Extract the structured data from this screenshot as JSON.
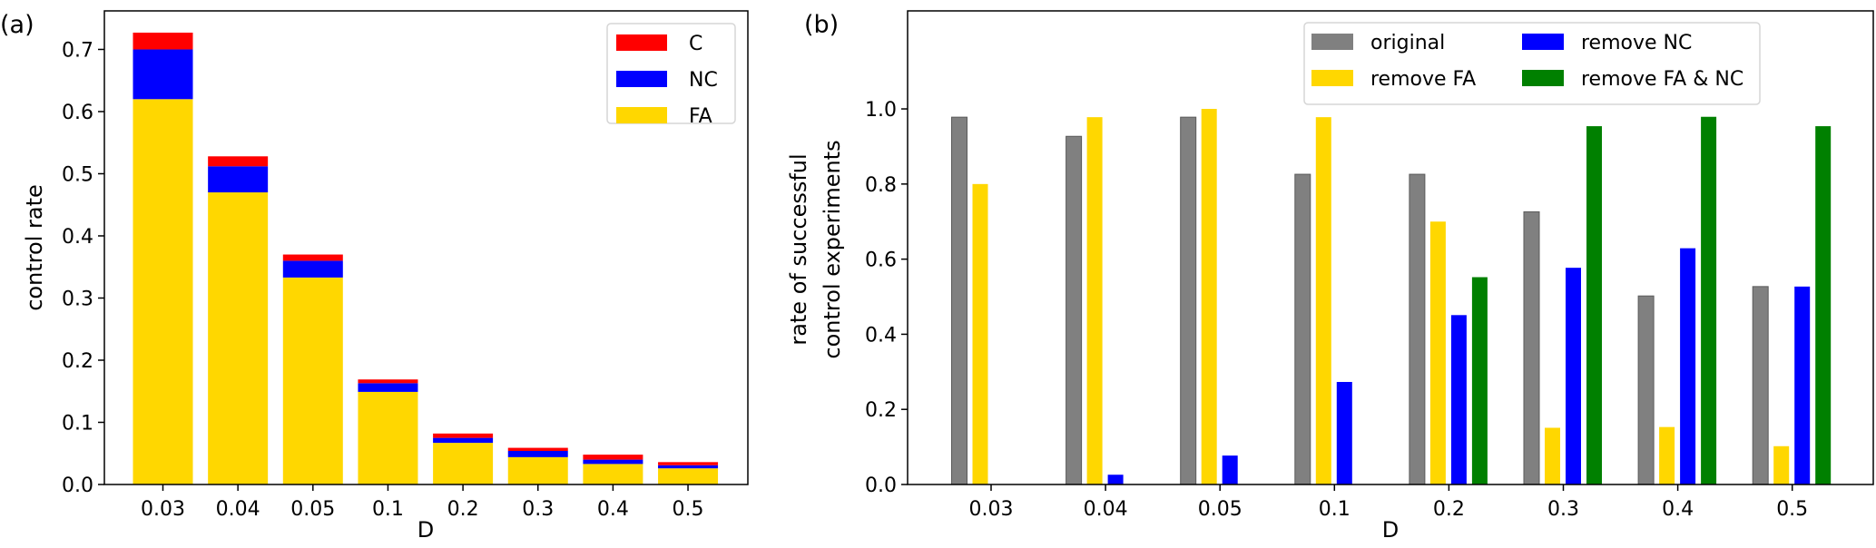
{
  "chart_data": [
    {
      "panel_label": "(a)",
      "type": "bar",
      "stacked": true,
      "categories": [
        "0.03",
        "0.04",
        "0.05",
        "0.1",
        "0.2",
        "0.3",
        "0.4",
        "0.5"
      ],
      "series": [
        {
          "name": "FA",
          "color": "#FFD700",
          "values": [
            0.62,
            0.47,
            0.333,
            0.149,
            0.067,
            0.044,
            0.033,
            0.026
          ]
        },
        {
          "name": "NC",
          "color": "#0000FF",
          "values": [
            0.08,
            0.042,
            0.027,
            0.014,
            0.008,
            0.01,
            0.007,
            0.005
          ]
        },
        {
          "name": "C",
          "color": "#FF0000",
          "values": [
            0.027,
            0.016,
            0.01,
            0.006,
            0.007,
            0.005,
            0.008,
            0.005
          ]
        }
      ],
      "legend_order": [
        "C",
        "NC",
        "FA"
      ],
      "title": "",
      "xlabel": "D",
      "ylabel": "control rate",
      "ylim": [
        0,
        0.762
      ],
      "yticks": [
        "0.0",
        "0.1",
        "0.2",
        "0.3",
        "0.4",
        "0.5",
        "0.6",
        "0.7"
      ],
      "legend": "top-right",
      "grid": false
    },
    {
      "panel_label": "(b)",
      "type": "bar",
      "stacked": false,
      "categories": [
        "0.03",
        "0.04",
        "0.05",
        "0.1",
        "0.2",
        "0.3",
        "0.4",
        "0.5"
      ],
      "series": [
        {
          "name": "original",
          "color": "#808080",
          "values": [
            0.978,
            0.927,
            0.978,
            0.826,
            0.826,
            0.726,
            0.502,
            0.527
          ]
        },
        {
          "name": "remove FA",
          "color": "#FFD700",
          "values": [
            0.8,
            0.978,
            1.0,
            0.978,
            0.7,
            0.151,
            0.153,
            0.102
          ]
        },
        {
          "name": "remove NC",
          "color": "#0000FF",
          "values": [
            0.0,
            0.026,
            0.077,
            0.273,
            0.451,
            0.577,
            0.629,
            0.527
          ]
        },
        {
          "name": "remove FA & NC",
          "color": "#008000",
          "values": [
            0.0,
            0.0,
            0.0,
            0.0,
            0.552,
            0.954,
            0.979,
            0.954
          ]
        }
      ],
      "legend_order": [
        "original",
        "remove FA",
        "remove NC",
        "remove FA & NC"
      ],
      "title": "",
      "xlabel": "D",
      "ylabel": [
        "rate of successful",
        "control experiments"
      ],
      "ylim": [
        0,
        1.261
      ],
      "yticks": [
        "0.0",
        "0.2",
        "0.4",
        "0.6",
        "0.8",
        "1.0"
      ],
      "legend": "top-right",
      "grid": false
    }
  ]
}
